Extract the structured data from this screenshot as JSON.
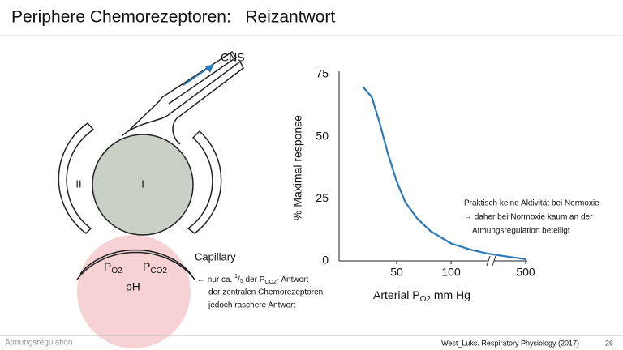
{
  "header": {
    "title": "Periphere Chemorezeptoren:   Reizantwort"
  },
  "diagram": {
    "cns": "CNS",
    "cell_1": "I",
    "cell_2": "II",
    "capillary": "Capillary",
    "po2": {
      "base": "P",
      "sub": "O2"
    },
    "pco2": {
      "base": "P",
      "sub": "CO2"
    },
    "ph": "pH"
  },
  "annotation": {
    "arrow": "←",
    "line1": [
      "nur ca. ",
      "1",
      "/",
      "5",
      " der P",
      "CO2",
      "- Antwort"
    ],
    "line2": "der zentralen Chemorezeptoren,",
    "line3": "jedoch raschere Antwort"
  },
  "chart_data": {
    "type": "line",
    "xlabel": [
      "Arterial P",
      "O2",
      " mm Hg"
    ],
    "ylabel": "% Maximal response",
    "xlim_segments": [
      [
        0,
        135
      ],
      [
        450,
        500
      ]
    ],
    "xticks": [
      50,
      100,
      500
    ],
    "ylim": [
      0,
      75
    ],
    "yticks": [
      0,
      25,
      50,
      75
    ],
    "series": [
      {
        "color": "#2a7ab8",
        "x": [
          19,
          27,
          34,
          42,
          50,
          58,
          69,
          81,
          100,
          118,
          133,
          463,
          500
        ],
        "values": [
          70,
          66,
          56,
          43,
          32,
          23.5,
          17,
          12,
          7,
          4.5,
          3,
          2,
          0.7
        ]
      }
    ]
  },
  "note": {
    "lines": [
      "Praktisch keine Aktivität bei Normoxie",
      "→ daher bei Normoxie kaum an der",
      "Atmungsregulation beteiligt"
    ]
  },
  "footer": {
    "left": "Atmungsregulation",
    "source": "West_Luks. Respiratory Physiology (2017)",
    "page": "26"
  }
}
